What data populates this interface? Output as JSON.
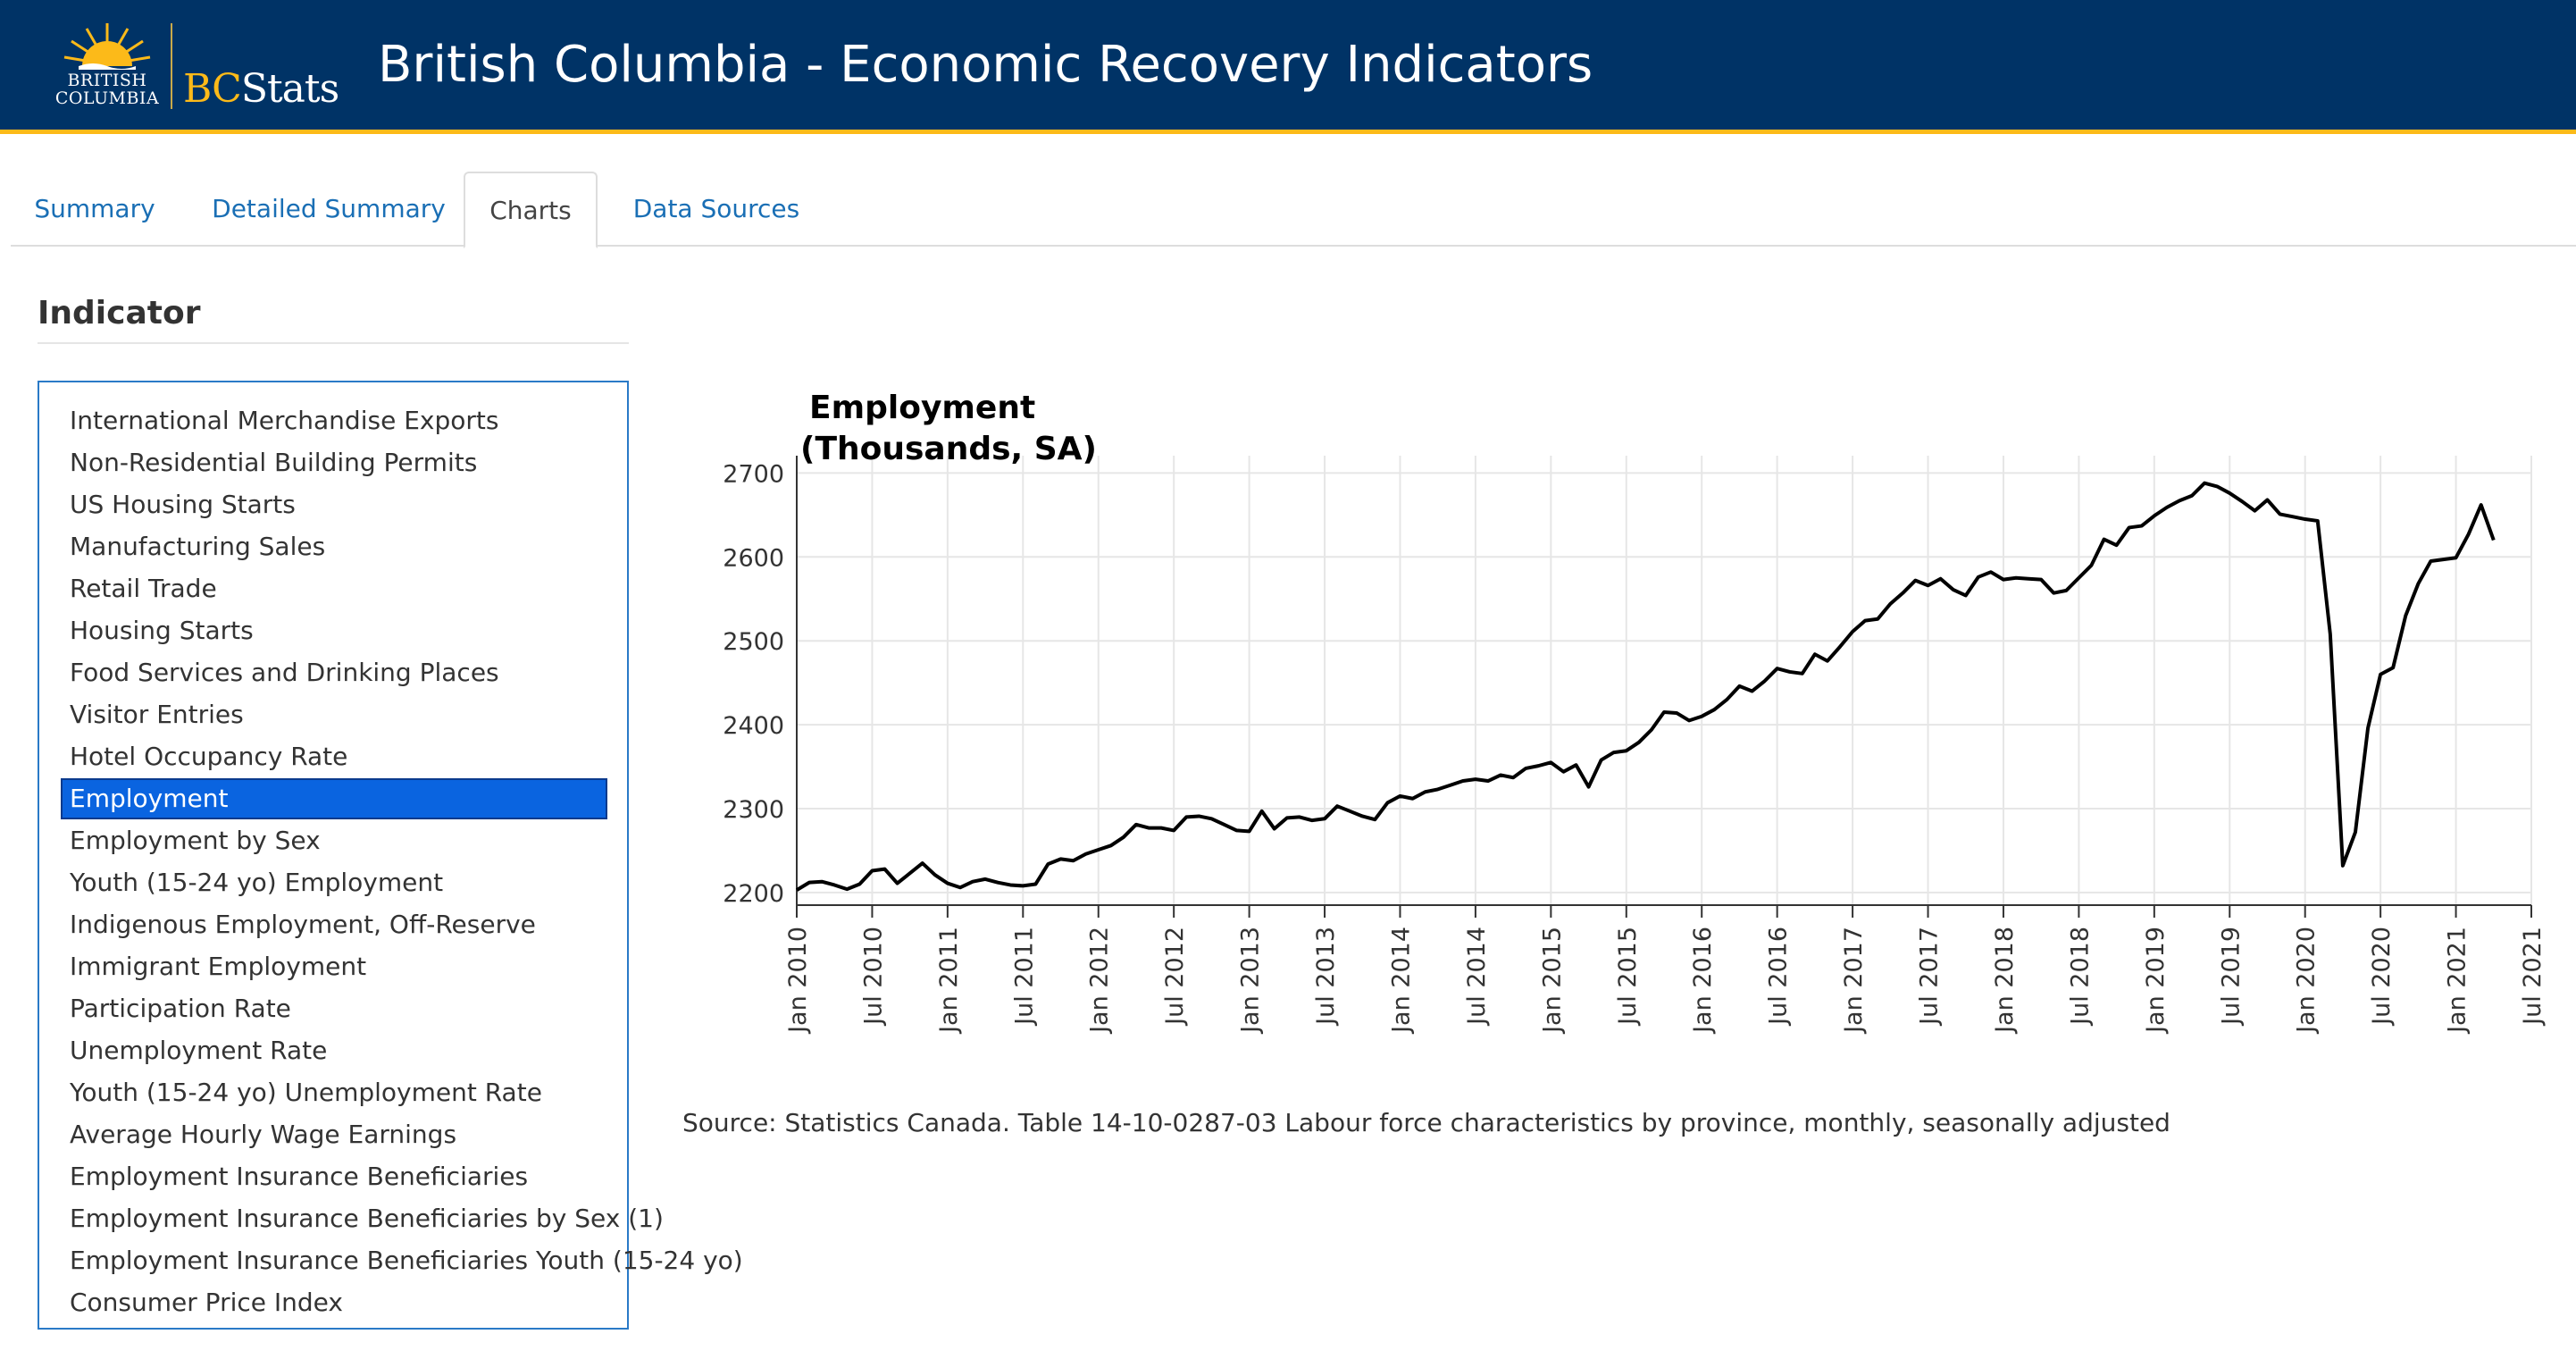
{
  "header": {
    "logo_bc_line1": "BRITISH",
    "logo_bc_line2": "COLUMBIA",
    "logo_bcstats_initial": "BC",
    "logo_bcstats_rest": "Stats",
    "title": "British Columbia - Economic Recovery Indicators"
  },
  "tabs": [
    {
      "label": "Summary",
      "active": false
    },
    {
      "label": "Detailed Summary",
      "active": false
    },
    {
      "label": "Charts",
      "active": true
    },
    {
      "label": "Data Sources",
      "active": false
    }
  ],
  "sidebar": {
    "heading": "Indicator",
    "selected": "Employment",
    "items": [
      "International Merchandise Exports",
      "Non-Residential Building Permits",
      "US Housing Starts",
      "Manufacturing Sales",
      "Retail Trade",
      "Housing Starts",
      "Food Services and Drinking Places",
      "Visitor Entries",
      "Hotel Occupancy Rate",
      "Employment",
      "Employment by Sex",
      "Youth (15-24 yo) Employment",
      "Indigenous Employment, Off-Reserve",
      "Immigrant Employment",
      "Participation Rate",
      "Unemployment Rate",
      "Youth (15-24 yo) Unemployment Rate",
      "Average Hourly Wage Earnings",
      "Employment Insurance Beneficiaries",
      "Employment Insurance Beneficiaries by Sex (1)",
      "Employment Insurance Beneficiaries Youth (15-24 yo)",
      "Consumer Price Index"
    ]
  },
  "colors": {
    "header_bg": "#003366",
    "header_accent": "#fcba19",
    "link": "#1a6fb5",
    "selected_bg": "#0a64e0",
    "line": "#000000"
  },
  "source": "Source: Statistics Canada. Table 14-10-0287-03 Labour force characteristics by province, monthly, seasonally adjusted",
  "chart_data": {
    "type": "line",
    "title_line1": "Employment",
    "title_line2": "(Thousands, SA)",
    "ylim": [
      2185,
      2710
    ],
    "yticks": [
      2200,
      2300,
      2400,
      2500,
      2600,
      2700
    ],
    "xlim": [
      "2010-01",
      "2021-07"
    ],
    "xticks": [
      {
        "date": "2010-01",
        "label": "Jan 2010"
      },
      {
        "date": "2010-07",
        "label": "Jul 2010"
      },
      {
        "date": "2011-01",
        "label": "Jan 2011"
      },
      {
        "date": "2011-07",
        "label": "Jul 2011"
      },
      {
        "date": "2012-01",
        "label": "Jan 2012"
      },
      {
        "date": "2012-07",
        "label": "Jul 2012"
      },
      {
        "date": "2013-01",
        "label": "Jan 2013"
      },
      {
        "date": "2013-07",
        "label": "Jul 2013"
      },
      {
        "date": "2014-01",
        "label": "Jan 2014"
      },
      {
        "date": "2014-07",
        "label": "Jul 2014"
      },
      {
        "date": "2015-01",
        "label": "Jan 2015"
      },
      {
        "date": "2015-07",
        "label": "Jul 2015"
      },
      {
        "date": "2016-01",
        "label": "Jan 2016"
      },
      {
        "date": "2016-07",
        "label": "Jul 2016"
      },
      {
        "date": "2017-01",
        "label": "Jan 2017"
      },
      {
        "date": "2017-07",
        "label": "Jul 2017"
      },
      {
        "date": "2018-01",
        "label": "Jan 2018"
      },
      {
        "date": "2018-07",
        "label": "Jul 2018"
      },
      {
        "date": "2019-01",
        "label": "Jan 2019"
      },
      {
        "date": "2019-07",
        "label": "Jul 2019"
      },
      {
        "date": "2020-01",
        "label": "Jan 2020"
      },
      {
        "date": "2020-07",
        "label": "Jul 2020"
      },
      {
        "date": "2021-01",
        "label": "Jan 2021"
      },
      {
        "date": "2021-07",
        "label": "Jul 2021"
      }
    ],
    "grid": true,
    "series": [
      {
        "start": "2010-01",
        "frequency": "monthly",
        "values": [
          2203,
          2212,
          2213,
          2209,
          2204,
          2210,
          2226,
          2228,
          2211,
          2223,
          2235,
          2221,
          2211,
          2206,
          2213,
          2216,
          2212,
          2209,
          2208,
          2210,
          2234,
          2240,
          2238,
          2246,
          2251,
          2256,
          2266,
          2281,
          2277,
          2277,
          2274,
          2290,
          2291,
          2288,
          2281,
          2274,
          2273,
          2297,
          2276,
          2289,
          2290,
          2286,
          2288,
          2303,
          2297,
          2291,
          2287,
          2307,
          2315,
          2312,
          2320,
          2323,
          2328,
          2333,
          2335,
          2333,
          2340,
          2337,
          2348,
          2351,
          2355,
          2344,
          2352,
          2326,
          2358,
          2367,
          2369,
          2379,
          2394,
          2415,
          2414,
          2405,
          2410,
          2418,
          2430,
          2446,
          2440,
          2452,
          2467,
          2463,
          2461,
          2484,
          2476,
          2493,
          2511,
          2524,
          2526,
          2544,
          2557,
          2572,
          2566,
          2574,
          2561,
          2554,
          2576,
          2582,
          2573,
          2575,
          2574,
          2573,
          2557,
          2560,
          2575,
          2590,
          2621,
          2614,
          2635,
          2637,
          2649,
          2659,
          2667,
          2673,
          2688,
          2684,
          2676,
          2666,
          2655,
          2668,
          2651,
          2648,
          2645,
          2643,
          2508,
          2232,
          2272,
          2396,
          2460,
          2468,
          2530,
          2568,
          2595,
          2597,
          2599,
          2627,
          2662,
          2620
        ]
      }
    ]
  }
}
